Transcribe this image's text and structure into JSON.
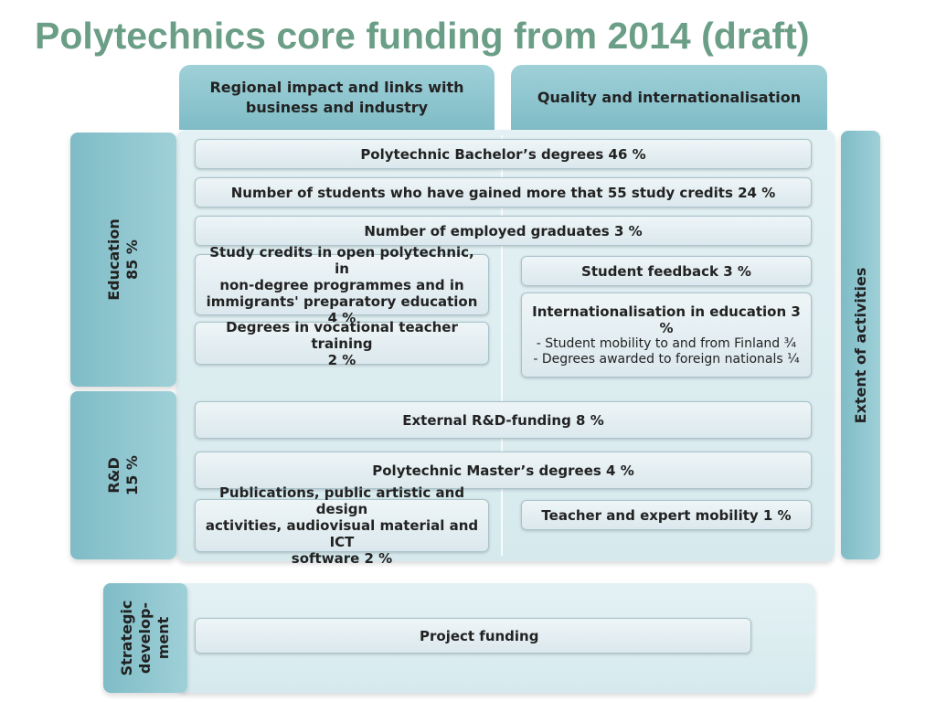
{
  "title": "Polytechnics core funding from 2014 (draft)",
  "headers": {
    "regional": [
      "Regional impact and links with",
      "business and industry"
    ],
    "quality": "Quality and internationalisation"
  },
  "side_labels": {
    "education": [
      "Education",
      "85 %"
    ],
    "rd": [
      "R&D",
      "15 %"
    ],
    "strategic": [
      "Strategic",
      "develop-",
      "ment"
    ],
    "extent": "Extent of activities"
  },
  "education": {
    "bachelor": "Polytechnic Bachelor’s degrees 46 %",
    "credits55": "Number of students who have gained more that 55 study credits 24 %",
    "employed": "Number of employed graduates 3 %",
    "open_poly": [
      "Study credits in open polytechnic, in",
      "non-degree programmes and in",
      "immigrants' preparatory education 4 %"
    ],
    "vocational": [
      "Degrees in vocational teacher training",
      "2 %"
    ],
    "feedback": "Student feedback 3 %",
    "internationalisation": {
      "title": "Internationalisation in education 3 %",
      "lines": [
        "- Student mobility to and from Finland ¾",
        "- Degrees awarded to foreign nationals ¼"
      ]
    }
  },
  "rd": {
    "external": "External R&D-funding 8 %",
    "master": "Polytechnic Master’s degrees 4 %",
    "publications": [
      "Publications, public artistic and design",
      "activities, audiovisual material and ICT",
      "software 2 %"
    ],
    "mobility": "Teacher and expert mobility 1 %"
  },
  "strategic": {
    "project": "Project funding"
  }
}
